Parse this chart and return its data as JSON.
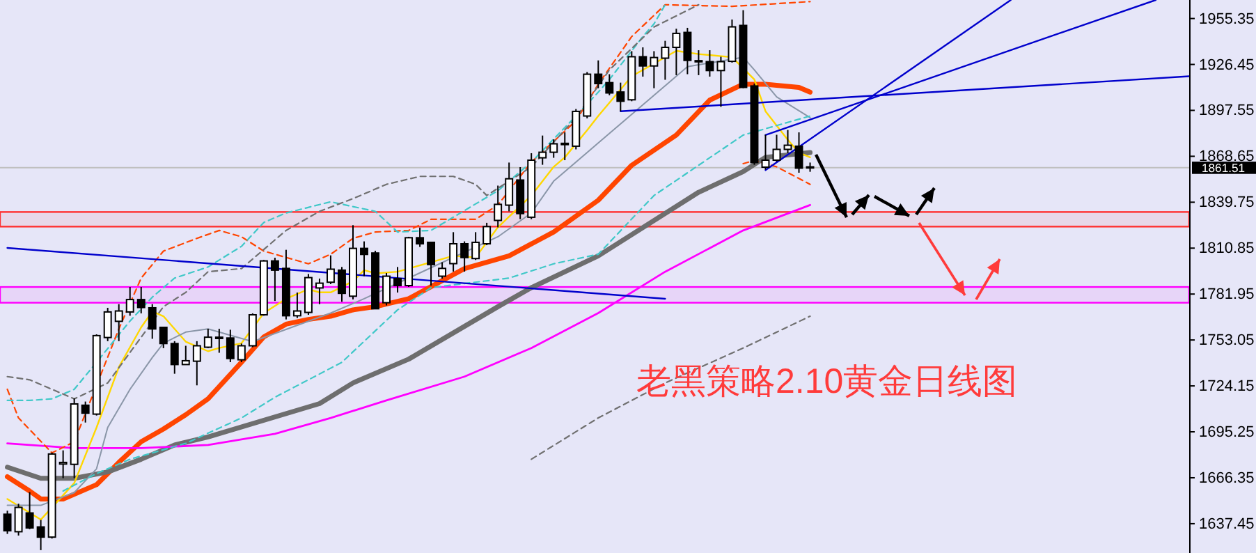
{
  "chart_data": {
    "type": "candlestick",
    "title": "老黑策略2.10黄金日线图",
    "categories": [
      null,
      null,
      null,
      null,
      null,
      null,
      null,
      null,
      null,
      null,
      null,
      null,
      null,
      null,
      null,
      null,
      null,
      null,
      null,
      null,
      null,
      null,
      null,
      null,
      null,
      null,
      null,
      null,
      null,
      null,
      null,
      null,
      null,
      null,
      null,
      null,
      null,
      null,
      null,
      null,
      null,
      null,
      null,
      null,
      null,
      null,
      null,
      null,
      null,
      null,
      null,
      null,
      null,
      null,
      null,
      null,
      null,
      null,
      null,
      null,
      null,
      null,
      null,
      null,
      null,
      null,
      null,
      null,
      null,
      null,
      null,
      null,
      null,
      null,
      null,
      null,
      null,
      null,
      null,
      null,
      null,
      null,
      null,
      null,
      null,
      null,
      null,
      null,
      null,
      null,
      null,
      null,
      null,
      null,
      null,
      null,
      null,
      null,
      null,
      null,
      null,
      null,
      null,
      null,
      null,
      null,
      null
    ],
    "ohlc": [
      [
        1643.4,
        1645.6,
        1631.0,
        1633.0
      ],
      [
        1632.4,
        1650.0,
        1630.0,
        1647.7
      ],
      [
        1644.2,
        1657.3,
        1634.0,
        1634.8
      ],
      [
        1635.4,
        1639.8,
        1620.8,
        1629.0
      ],
      [
        1629.0,
        1682.2,
        1628.1,
        1681.3
      ],
      [
        1675.0,
        1683.6,
        1666.1,
        1676.0
      ],
      [
        1674.8,
        1716.3,
        1666.1,
        1712.8
      ],
      [
        1712.0,
        1714.3,
        1701.1,
        1707.0
      ],
      [
        1706.4,
        1756.6,
        1705.5,
        1755.8
      ],
      [
        1754.6,
        1773.3,
        1752.3,
        1770.7
      ],
      [
        1764.8,
        1775.6,
        1752.3,
        1771.3
      ],
      [
        1770.7,
        1786.4,
        1768.3,
        1778.5
      ],
      [
        1778.5,
        1786.4,
        1769.8,
        1773.5
      ],
      [
        1773.3,
        1775.6,
        1753.8,
        1760.0
      ],
      [
        1761.0,
        1761.0,
        1747.9,
        1750.8
      ],
      [
        1750.8,
        1752.3,
        1731.8,
        1737.6
      ],
      [
        1737.6,
        1749.4,
        1737.6,
        1740.0
      ],
      [
        1739.7,
        1752.3,
        1724.5,
        1749.4
      ],
      [
        1748.5,
        1760.1,
        1747.9,
        1754.8
      ],
      [
        1754.0,
        1760.1,
        1745.0,
        1754.8
      ],
      [
        1754.3,
        1759.5,
        1739.1,
        1741.4
      ],
      [
        1740.6,
        1750.8,
        1739.1,
        1749.4
      ],
      [
        1749.4,
        1769.8,
        1748.5,
        1768.9
      ],
      [
        1768.9,
        1803.4,
        1768.3,
        1802.8
      ],
      [
        1802.8,
        1804.8,
        1777.6,
        1797.0
      ],
      [
        1798.1,
        1809.8,
        1766.0,
        1768.3
      ],
      [
        1768.3,
        1782.9,
        1766.9,
        1771.3
      ],
      [
        1770.4,
        1794.6,
        1768.9,
        1792.3
      ],
      [
        1785.8,
        1791.7,
        1775.6,
        1788.8
      ],
      [
        1789.4,
        1806.3,
        1788.2,
        1797.6
      ],
      [
        1797.0,
        1799.0,
        1777.1,
        1782.4
      ],
      [
        1780.6,
        1825.3,
        1778.6,
        1810.7
      ],
      [
        1810.7,
        1815.1,
        1793.2,
        1806.9
      ],
      [
        1807.8,
        1809.2,
        1772.7,
        1772.7
      ],
      [
        1776.5,
        1795.2,
        1774.8,
        1793.2
      ],
      [
        1791.7,
        1799.0,
        1782.9,
        1787.3
      ],
      [
        1787.3,
        1818.0,
        1786.4,
        1817.4
      ],
      [
        1817.4,
        1823.8,
        1811.6,
        1813.6
      ],
      [
        1814.5,
        1814.5,
        1787.3,
        1800.5
      ],
      [
        1793.2,
        1802.0,
        1791.7,
        1798.1
      ],
      [
        1801.1,
        1820.9,
        1796.1,
        1813.6
      ],
      [
        1813.6,
        1815.1,
        1796.1,
        1804.9
      ],
      [
        1804.3,
        1820.9,
        1803.4,
        1814.5
      ],
      [
        1813.6,
        1826.8,
        1812.7,
        1824.4
      ],
      [
        1828.3,
        1850.2,
        1823.9,
        1838.4
      ],
      [
        1837.9,
        1864.7,
        1834.0,
        1854.5
      ],
      [
        1853.7,
        1861.8,
        1829.1,
        1832.6
      ],
      [
        1830.3,
        1870.6,
        1829.1,
        1866.2
      ],
      [
        1867.7,
        1881.7,
        1863.3,
        1871.2
      ],
      [
        1871.2,
        1879.3,
        1867.7,
        1876.5
      ],
      [
        1876.0,
        1883.7,
        1866.2,
        1876.8
      ],
      [
        1875.0,
        1898.4,
        1873.0,
        1896.9
      ],
      [
        1894.0,
        1921.7,
        1892.5,
        1920.3
      ],
      [
        1920.3,
        1929.0,
        1911.5,
        1914.4
      ],
      [
        1915.0,
        1920.3,
        1907.1,
        1908.5
      ],
      [
        1909.1,
        1915.0,
        1896.9,
        1903.3
      ],
      [
        1904.2,
        1934.8,
        1903.3,
        1931.3
      ],
      [
        1931.3,
        1937.2,
        1918.8,
        1925.5
      ],
      [
        1925.5,
        1934.8,
        1911.5,
        1930.8
      ],
      [
        1930.4,
        1941.3,
        1916.8,
        1937.2
      ],
      [
        1937.2,
        1948.9,
        1919.7,
        1946.0
      ],
      [
        1946.6,
        1949.5,
        1920.3,
        1929.0
      ],
      [
        1928.4,
        1935.4,
        1919.7,
        1928.8
      ],
      [
        1928.2,
        1935.4,
        1918.8,
        1922.6
      ],
      [
        1922.6,
        1931.3,
        1899.8,
        1928.2
      ],
      [
        1928.4,
        1954.7,
        1927.6,
        1950.1
      ],
      [
        1951.0,
        1960.6,
        1911.5,
        1912.0
      ],
      [
        1912.9,
        1914.4,
        1863.3,
        1864.7
      ],
      [
        1861.8,
        1882.2,
        1860.3,
        1866.2
      ],
      [
        1866.2,
        1882.2,
        1865.3,
        1873.0
      ],
      [
        1873.0,
        1885.2,
        1870.6,
        1875.6
      ],
      [
        1875.0,
        1883.7,
        1858.3,
        1861.2
      ],
      [
        1862.0,
        1864.7,
        1858.9,
        1861.51
      ],
      null,
      null,
      null,
      null,
      null,
      null,
      null,
      null,
      null,
      null,
      null,
      null,
      null,
      null,
      null,
      null,
      null,
      null,
      null,
      null,
      null,
      null,
      null,
      null,
      null,
      null,
      null,
      null,
      null,
      null,
      null,
      null,
      null,
      null
    ],
    "series": [
      {
        "type": "line",
        "color": "#ff4500",
        "values": [
          1667,
          null,
          1658,
          1653,
          null,
          1653,
          null,
          null,
          1662,
          null,
          1676,
          null,
          1689,
          null,
          1697,
          null,
          1706,
          null,
          1716,
          null,
          null,
          1739,
          null,
          1755,
          null,
          1763,
          null,
          1766,
          null,
          1768,
          null,
          1772,
          null,
          1774,
          null,
          null,
          1779,
          null,
          null,
          null,
          null,
          1798,
          null,
          null,
          null,
          1806,
          null,
          null,
          null,
          1821,
          null,
          null,
          null,
          1841,
          null,
          null,
          1863,
          null,
          null,
          null,
          1882,
          null,
          null,
          1904,
          null,
          null,
          1914,
          null,
          1914,
          null,
          null,
          1912,
          1909,
          null,
          null,
          null,
          null,
          null,
          null,
          null,
          null,
          null,
          null,
          null,
          null,
          null,
          null,
          null,
          null,
          null,
          null,
          null,
          null,
          null,
          null,
          null,
          null,
          null,
          null,
          null,
          null,
          null,
          null,
          null,
          null,
          null,
          null
        ]
      },
      {
        "type": "line",
        "color": "#6e6e6e",
        "values": [
          1673,
          null,
          null,
          1666,
          null,
          null,
          1666,
          null,
          null,
          1670,
          null,
          null,
          1678,
          null,
          null,
          1687,
          null,
          null,
          1692,
          null,
          null,
          null,
          null,
          null,
          null,
          null,
          null,
          null,
          1713,
          null,
          null,
          1726,
          null,
          null,
          null,
          null,
          1741,
          null,
          null,
          null,
          null,
          null,
          null,
          null,
          1774,
          null,
          null,
          1786,
          null,
          null,
          null,
          null,
          null,
          1806,
          null,
          null,
          null,
          null,
          null,
          null,
          null,
          null,
          1846,
          null,
          null,
          null,
          1859,
          null,
          1868,
          null,
          null,
          null,
          1871,
          null,
          null,
          null,
          null,
          null,
          null,
          null,
          null,
          null,
          null,
          null,
          null,
          null,
          null,
          null,
          null,
          null,
          null,
          null,
          null,
          null,
          null,
          null,
          null,
          null,
          null,
          null,
          null,
          null,
          null,
          null,
          null,
          null,
          null
        ]
      },
      {
        "type": "line",
        "color": "#ff00ff",
        "values": [
          1688,
          null,
          null,
          null,
          null,
          null,
          1685,
          null,
          null,
          null,
          null,
          null,
          1685,
          null,
          null,
          null,
          null,
          null,
          1687,
          null,
          null,
          null,
          null,
          null,
          1694,
          null,
          null,
          null,
          null,
          1704,
          null,
          null,
          null,
          null,
          1715,
          null,
          null,
          null,
          null,
          null,
          null,
          1730,
          null,
          null,
          null,
          null,
          null,
          1748,
          null,
          null,
          null,
          null,
          null,
          1770,
          null,
          null,
          null,
          null,
          null,
          1796,
          null,
          null,
          null,
          null,
          null,
          null,
          1822,
          null,
          null,
          null,
          null,
          null,
          1838,
          null,
          null,
          null,
          null,
          null,
          null,
          null,
          null,
          null,
          null,
          null,
          null,
          null,
          null,
          null,
          null,
          null,
          null,
          null,
          null,
          null,
          null,
          null,
          null,
          null,
          null,
          null,
          null,
          null,
          null,
          null,
          null,
          null,
          null
        ]
      },
      {
        "type": "line",
        "color": "#ffd700",
        "values": [
          1653,
          null,
          null,
          1640,
          null,
          null,
          1663,
          null,
          1698,
          null,
          1736,
          null,
          1761,
          1771,
          1768,
          null,
          1752,
          null,
          1746,
          1748,
          null,
          1751,
          null,
          1770,
          null,
          1779,
          null,
          1785,
          1783,
          1783,
          null,
          1790,
          1797,
          1795,
          null,
          1796,
          null,
          null,
          null,
          null,
          1806,
          null,
          1805,
          null,
          1824,
          null,
          null,
          1844,
          null,
          1862,
          1868,
          null,
          1885,
          1894,
          null,
          null,
          1919,
          null,
          null,
          null,
          1935,
          null,
          1933,
          null,
          null,
          1931,
          null,
          1917,
          1897,
          null,
          1879,
          1871,
          1868,
          null,
          null,
          null,
          null,
          null,
          null,
          null,
          null,
          null,
          null,
          null,
          null,
          null,
          null,
          null,
          null,
          null,
          null,
          null,
          null,
          null,
          null,
          null,
          null,
          null,
          null,
          null,
          null,
          null,
          null,
          null,
          null,
          null,
          null
        ]
      },
      {
        "type": "line",
        "color": "#8a96a8",
        "values": [
          1649,
          null,
          null,
          1649,
          null,
          null,
          1657,
          null,
          1672,
          1698,
          null,
          1722,
          null,
          1742,
          1751,
          null,
          1758,
          null,
          1760,
          null,
          null,
          null,
          1752,
          null,
          null,
          null,
          null,
          null,
          null,
          1770,
          null,
          null,
          1779,
          null,
          null,
          null,
          1792,
          null,
          null,
          null,
          null,
          null,
          null,
          null,
          1818,
          null,
          null,
          1833,
          null,
          1853,
          null,
          null,
          1871,
          1877,
          null,
          null,
          null,
          null,
          null,
          null,
          null,
          1925,
          null,
          null,
          null,
          null,
          1931,
          1923,
          null,
          1906,
          null,
          null,
          1893,
          null,
          null,
          null,
          null,
          null,
          null,
          null,
          null,
          null,
          null,
          null,
          null,
          null,
          null,
          null,
          null,
          null,
          null,
          null,
          null,
          null,
          null,
          null,
          null,
          null,
          null,
          null,
          null,
          null,
          null,
          null,
          null,
          null,
          null
        ]
      },
      {
        "type": "line",
        "color": "#ff4500",
        "line_style": "dashed",
        "values": [
          1722,
          1704,
          null,
          null,
          1682,
          null,
          1689,
          null,
          null,
          null,
          1760,
          null,
          1792,
          null,
          1809,
          null,
          null,
          1817,
          null,
          1822,
          null,
          1818,
          null,
          1809,
          null,
          null,
          null,
          1801,
          null,
          1807,
          null,
          1817,
          null,
          1821,
          null,
          null,
          1822,
          null,
          1829,
          null,
          null,
          null,
          1829,
          null,
          1838,
          null,
          null,
          1865,
          null,
          null,
          null,
          1891,
          null,
          1914,
          null,
          null,
          1944,
          null,
          null,
          1964,
          null,
          null,
          null,
          null,
          null,
          1963,
          null,
          null,
          null,
          null,
          null,
          null,
          1966,
          null,
          null,
          null,
          null,
          null,
          null,
          null,
          null,
          null,
          null,
          null,
          null,
          null,
          null,
          null,
          null,
          null,
          null,
          null,
          null,
          null,
          null,
          null,
          null,
          null,
          null,
          null,
          null,
          null,
          null,
          null,
          null,
          null,
          null
        ]
      },
      {
        "type": "line",
        "color": "#ff4500",
        "line_style": "dashed",
        "values": [
          null,
          null,
          null,
          null,
          null,
          null,
          null,
          null,
          null,
          null,
          null,
          null,
          null,
          null,
          null,
          null,
          null,
          null,
          null,
          null,
          null,
          null,
          null,
          null,
          null,
          null,
          null,
          null,
          null,
          null,
          null,
          null,
          null,
          null,
          null,
          null,
          null,
          null,
          null,
          null,
          null,
          null,
          null,
          null,
          null,
          null,
          null,
          null,
          null,
          null,
          null,
          null,
          null,
          null,
          null,
          null,
          null,
          null,
          null,
          null,
          null,
          null,
          null,
          null,
          null,
          null,
          1864,
          1866,
          null,
          1862,
          null,
          null,
          1851,
          null,
          null,
          null,
          null,
          null,
          null,
          null,
          null,
          null,
          null,
          null,
          null,
          null,
          null,
          null,
          null,
          null,
          null,
          null,
          null,
          null,
          null,
          null,
          null,
          null,
          null,
          null,
          null,
          null,
          null,
          null,
          null,
          null,
          null
        ]
      },
      {
        "type": "line",
        "color": "#40c8c8",
        "line_style": "dashed",
        "values": [
          1715,
          null,
          1715,
          null,
          1716,
          null,
          1722,
          null,
          1739,
          null,
          null,
          1765,
          null,
          1780,
          null,
          1792,
          null,
          null,
          1799,
          null,
          null,
          1812,
          null,
          1827,
          null,
          1833,
          null,
          null,
          null,
          1840,
          null,
          null,
          null,
          1834,
          null,
          1821,
          null,
          null,
          1822,
          null,
          null,
          null,
          null,
          null,
          1847,
          null,
          null,
          1865,
          null,
          null,
          null,
          1894,
          null,
          1909,
          1917,
          null,
          null,
          1944,
          1952,
          1964,
          null,
          null,
          null,
          null,
          null,
          null,
          null,
          null,
          null,
          null,
          null,
          null,
          null,
          null,
          null,
          null,
          null,
          null,
          null,
          null,
          null,
          null,
          null,
          null,
          null,
          null,
          null,
          null,
          null,
          null,
          null,
          null,
          null,
          null,
          null,
          null,
          null,
          null,
          null,
          null,
          null,
          null,
          null,
          null,
          null,
          null,
          null
        ]
      },
      {
        "type": "line",
        "color": "#40c8c8",
        "line_style": "dashed",
        "values": [
          null,
          null,
          null,
          null,
          null,
          1658,
          null,
          null,
          1669,
          null,
          null,
          1678,
          null,
          null,
          null,
          null,
          1688,
          null,
          null,
          null,
          null,
          1704,
          null,
          null,
          1717,
          null,
          null,
          null,
          null,
          null,
          1739,
          null,
          null,
          null,
          null,
          1772,
          null,
          null,
          1786,
          null,
          null,
          null,
          null,
          null,
          null,
          1792,
          null,
          null,
          null,
          1801,
          null,
          null,
          null,
          1807,
          null,
          null,
          null,
          null,
          1844,
          null,
          null,
          null,
          null,
          null,
          null,
          null,
          1882,
          null,
          null,
          null,
          null,
          null,
          1894,
          null,
          null,
          null,
          null,
          null,
          null,
          null,
          null,
          null,
          null,
          null,
          null,
          null,
          null,
          null,
          null,
          null,
          null,
          null,
          null,
          null,
          null,
          null,
          null,
          null,
          null,
          null,
          null,
          null,
          null,
          null,
          null,
          null,
          null
        ]
      },
      {
        "type": "line",
        "color": "#707070",
        "line_style": "dashed",
        "values": [
          1730,
          null,
          1728,
          null,
          1722,
          null,
          1716,
          null,
          null,
          1726,
          null,
          null,
          null,
          null,
          1774,
          null,
          1783,
          null,
          1796,
          null,
          null,
          1798,
          null,
          null,
          null,
          1822,
          null,
          null,
          1834,
          null,
          null,
          1842,
          null,
          null,
          1851,
          null,
          null,
          1856,
          null,
          null,
          1856,
          null,
          1851,
          1844,
          null,
          null,
          null,
          1862,
          null,
          null,
          null,
          1893,
          null,
          null,
          1923,
          null,
          null,
          null,
          1950,
          null,
          null,
          null,
          1964,
          null,
          null,
          null,
          null,
          null,
          null,
          null,
          null,
          null,
          null,
          null,
          null,
          null,
          null,
          null,
          null,
          null,
          null,
          null,
          null,
          null,
          null,
          null,
          null,
          null,
          null,
          null,
          null,
          null,
          null,
          null,
          null,
          null,
          null,
          null,
          null,
          null,
          null,
          null,
          null,
          null,
          null,
          null,
          null
        ]
      },
      {
        "type": "line",
        "color": "#707070",
        "line_style": "dashed",
        "values": [
          null,
          null,
          null,
          null,
          null,
          null,
          null,
          null,
          null,
          null,
          null,
          null,
          null,
          null,
          null,
          null,
          null,
          null,
          null,
          null,
          null,
          null,
          null,
          null,
          null,
          null,
          null,
          null,
          null,
          null,
          null,
          null,
          null,
          null,
          null,
          null,
          null,
          null,
          null,
          null,
          null,
          null,
          null,
          null,
          null,
          null,
          null,
          1678,
          null,
          null,
          null,
          null,
          null,
          1704,
          null,
          null,
          null,
          null,
          null,
          1726,
          null,
          null,
          null,
          null,
          null,
          null,
          1748,
          null,
          null,
          null,
          null,
          null,
          1768,
          null,
          null,
          null,
          null,
          null,
          null,
          null,
          null,
          null,
          null,
          null,
          null,
          null,
          null,
          null,
          null,
          null,
          null,
          null,
          null,
          null,
          null,
          null,
          null,
          null,
          null,
          null,
          null,
          null,
          null,
          null,
          null,
          null,
          null
        ]
      },
      {
        "type": "line",
        "color": "#0000cc",
        "values": [
          1811,
          null,
          null,
          null,
          null,
          null,
          null,
          null,
          null,
          null,
          null,
          null,
          null,
          null,
          null,
          null,
          null,
          null,
          null,
          null,
          null,
          null,
          null,
          null,
          null,
          null,
          null,
          null,
          null,
          null,
          null,
          null,
          null,
          null,
          null,
          null,
          null,
          null,
          null,
          null,
          null,
          null,
          null,
          null,
          null,
          null,
          null,
          null,
          null,
          null,
          null,
          null,
          null,
          null,
          null,
          null,
          null,
          null,
          null,
          1779,
          null,
          null,
          null,
          null,
          null,
          null,
          null,
          null,
          null,
          null,
          null,
          null,
          null,
          null,
          null,
          null,
          null,
          null,
          null,
          null,
          null,
          null,
          null,
          null,
          null,
          null,
          null,
          null,
          null,
          null,
          null,
          null,
          null,
          null,
          null,
          null,
          null,
          null,
          null,
          null,
          null,
          null,
          null,
          null,
          null,
          null,
          null
        ]
      },
      {
        "type": "line",
        "color": "#0000cc",
        "values": [
          null,
          null,
          null,
          null,
          null,
          null,
          null,
          null,
          null,
          null,
          null,
          null,
          null,
          null,
          null,
          null,
          null,
          null,
          null,
          null,
          null,
          null,
          null,
          null,
          null,
          null,
          null,
          null,
          null,
          null,
          null,
          null,
          null,
          null,
          null,
          null,
          null,
          null,
          null,
          null,
          null,
          null,
          null,
          null,
          null,
          null,
          null,
          null,
          null,
          null,
          null,
          null,
          null,
          null,
          null,
          1897,
          null,
          null,
          null,
          null,
          null,
          null,
          null,
          null,
          null,
          null,
          null,
          null,
          null,
          null,
          null,
          null,
          null,
          null,
          null,
          null,
          null,
          null,
          null,
          null,
          null,
          null,
          null,
          null,
          null,
          null,
          null,
          null,
          null,
          null,
          null,
          null,
          null,
          null,
          null,
          null,
          null,
          null,
          null,
          null,
          null,
          null,
          null,
          null,
          null,
          null,
          1919
        ]
      },
      {
        "type": "line",
        "color": "#0000cc",
        "values": [
          null,
          null,
          null,
          null,
          null,
          null,
          null,
          null,
          null,
          null,
          null,
          null,
          null,
          null,
          null,
          null,
          null,
          null,
          null,
          null,
          null,
          null,
          null,
          null,
          null,
          null,
          null,
          null,
          null,
          null,
          null,
          null,
          null,
          null,
          null,
          null,
          null,
          null,
          null,
          null,
          null,
          null,
          null,
          null,
          null,
          null,
          null,
          null,
          null,
          null,
          null,
          null,
          null,
          null,
          null,
          null,
          null,
          null,
          null,
          null,
          null,
          null,
          null,
          null,
          null,
          null,
          null,
          null,
          1882,
          null,
          null,
          null,
          null,
          null,
          null,
          null,
          null,
          null,
          null,
          null,
          null,
          null,
          null,
          null,
          null,
          null,
          null,
          null,
          null,
          null,
          null,
          null,
          null,
          null,
          null,
          null,
          null,
          null,
          null,
          null,
          null,
          null,
          null,
          1967,
          null,
          null,
          null
        ]
      },
      {
        "type": "line",
        "color": "#0000cc",
        "values": [
          null,
          null,
          null,
          null,
          null,
          null,
          null,
          null,
          null,
          null,
          null,
          null,
          null,
          null,
          null,
          null,
          null,
          null,
          null,
          null,
          null,
          null,
          null,
          null,
          null,
          null,
          null,
          null,
          null,
          null,
          null,
          null,
          null,
          null,
          null,
          null,
          null,
          null,
          null,
          null,
          null,
          null,
          null,
          null,
          null,
          null,
          null,
          null,
          null,
          null,
          null,
          null,
          null,
          null,
          null,
          null,
          null,
          null,
          null,
          null,
          null,
          null,
          null,
          null,
          null,
          null,
          null,
          null,
          1860,
          null,
          null,
          null,
          null,
          null,
          null,
          null,
          null,
          null,
          null,
          null,
          null,
          null,
          null,
          null,
          null,
          null,
          null,
          null,
          null,
          null,
          1967,
          null,
          null,
          null,
          null,
          null,
          null,
          null,
          null,
          null,
          null,
          null,
          null,
          null,
          null,
          null,
          null
        ]
      }
    ],
    "ylim": [
      1619,
      1967
    ],
    "yticks": [
      1637.45,
      1666.35,
      1695.25,
      1724.15,
      1753.05,
      1781.95,
      1810.85,
      1839.75,
      1868.65,
      1897.55,
      1926.45,
      1955.35
    ],
    "ref_lines": [
      {
        "axis": "y",
        "value": 1861.51,
        "label": "1861.51",
        "color": "#c0c0c0"
      }
    ],
    "bands": [
      {
        "axis": "y",
        "from": 1824.4,
        "to": 1833.6,
        "color": "#ff3030"
      },
      {
        "axis": "y",
        "from": 1776.5,
        "to": 1786.4,
        "color": "#ff00ff"
      }
    ],
    "tick_labels": "y",
    "grid": false
  }
}
